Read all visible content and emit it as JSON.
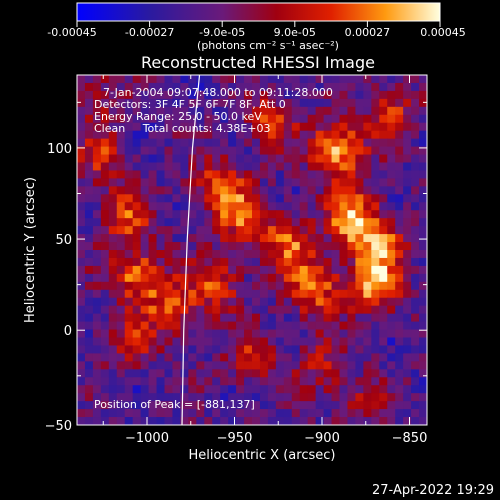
{
  "figure": {
    "colorbar": {
      "tick_labels": [
        "-0.00045",
        "-0.00027",
        "-9.0e-05",
        "9.0e-05",
        "0.00027",
        "0.00045"
      ],
      "unit_label": "(photons cm⁻² s⁻¹ asec⁻²)",
      "range": [
        -0.00045,
        0.00045
      ]
    },
    "title": "Reconstructed RHESSI Image",
    "info_lines": [
      "7-Jan-2004 09:07:48.000 to 09:11:28.000",
      "Detectors: 3F 4F 5F 6F 7F 8F, Att 0",
      "Energy Range: 25.0 - 50.0 keV",
      "Clean     Total counts: 4.38E+03"
    ],
    "peak_label": "Position of Peak = [-881,137]",
    "timestamp": "27-Apr-2022 19:29",
    "colors": {
      "background": "#000000",
      "text": "#ffffff",
      "limb": "#ffffff"
    }
  },
  "chart_data": {
    "type": "heatmap",
    "title": "Reconstructed RHESSI Image",
    "xlabel": "Heliocentric X (arcsec)",
    "ylabel": "Heliocentric Y (arcsec)",
    "xlim": [
      -1040,
      -840
    ],
    "ylim": [
      -52,
      140
    ],
    "x_ticks": [
      -1000,
      -950,
      -900,
      -850
    ],
    "y_ticks": [
      0,
      50,
      100
    ],
    "colormap": "blue-purple-red-orange-yellow-white (diverging)",
    "value_range": [
      -0.00045,
      0.00045
    ],
    "peak_position": [
      -881,
      137
    ],
    "solar_limb": [
      [
        -970,
        140
      ],
      [
        -974,
        100
      ],
      [
        -977,
        50
      ],
      [
        -979,
        0
      ],
      [
        -980,
        -52
      ]
    ],
    "sources": [
      {
        "x": -891,
        "y": 99,
        "strength": 1.0
      },
      {
        "x": -882,
        "y": 62,
        "strength": 0.85
      },
      {
        "x": -870,
        "y": 25,
        "strength": 0.9
      },
      {
        "x": -868,
        "y": 48,
        "strength": 0.7
      },
      {
        "x": -905,
        "y": 24,
        "strength": 0.8
      },
      {
        "x": -920,
        "y": 50,
        "strength": 0.7
      },
      {
        "x": -948,
        "y": 63,
        "strength": 0.6
      },
      {
        "x": -960,
        "y": 80,
        "strength": 0.6
      },
      {
        "x": -1005,
        "y": 30,
        "strength": 0.8
      },
      {
        "x": -985,
        "y": 12,
        "strength": 0.6
      },
      {
        "x": -1012,
        "y": 62,
        "strength": 0.6
      },
      {
        "x": -1025,
        "y": 95,
        "strength": 0.5
      },
      {
        "x": -930,
        "y": 115,
        "strength": 0.55
      },
      {
        "x": -1010,
        "y": -5,
        "strength": 0.45
      },
      {
        "x": -940,
        "y": -15,
        "strength": 0.5
      },
      {
        "x": -900,
        "y": -20,
        "strength": 0.4
      },
      {
        "x": -860,
        "y": 120,
        "strength": 0.5
      },
      {
        "x": -960,
        "y": 25,
        "strength": 0.6
      },
      {
        "x": -880,
        "y": -40,
        "strength": 0.35
      },
      {
        "x": -1030,
        "y": 130,
        "strength": 0.35
      }
    ]
  }
}
